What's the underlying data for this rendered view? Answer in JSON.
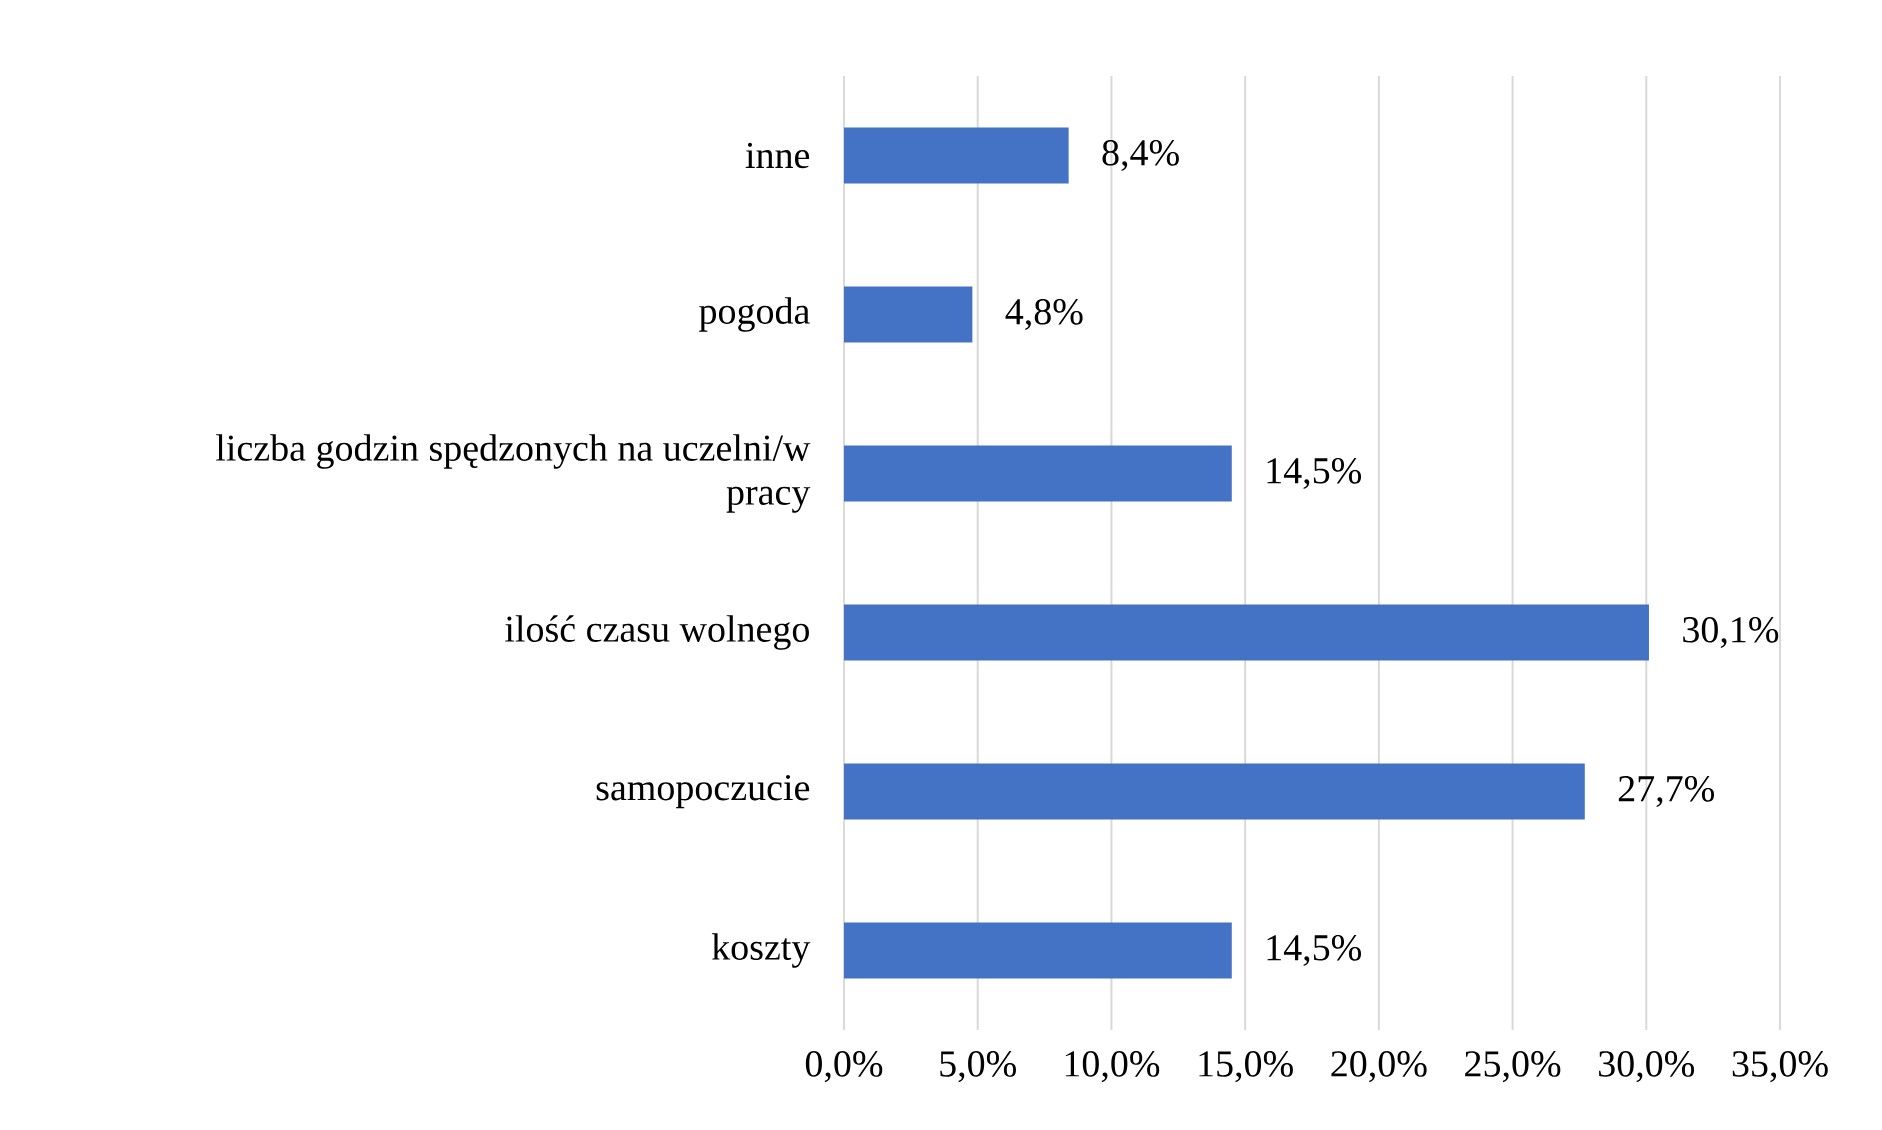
{
  "chart_data": {
    "type": "bar",
    "orientation": "horizontal",
    "categories": [
      "inne",
      "pogoda",
      "liczba godzin spędzonych na uczelni/w pracy",
      "ilość czasu wolnego",
      "samopoczucie",
      "koszty"
    ],
    "values": [
      8.4,
      4.8,
      14.5,
      30.1,
      27.7,
      14.5
    ],
    "value_labels": [
      "8,4%",
      "4,8%",
      "14,5%",
      "30,1%",
      "27,7%",
      "14,5%"
    ],
    "color": "#4472c4",
    "xlim": [
      0,
      35
    ],
    "xticks": [
      {
        "value": 0,
        "label": "0,0%"
      },
      {
        "value": 5,
        "label": "5,0%"
      },
      {
        "value": 10,
        "label": "10,0%"
      },
      {
        "value": 15,
        "label": "15,0%"
      },
      {
        "value": 20,
        "label": "20,0%"
      },
      {
        "value": 25,
        "label": "25,0%"
      },
      {
        "value": 30,
        "label": "30,0%"
      },
      {
        "value": 35,
        "label": "35,0%"
      }
    ],
    "grid": "x"
  }
}
